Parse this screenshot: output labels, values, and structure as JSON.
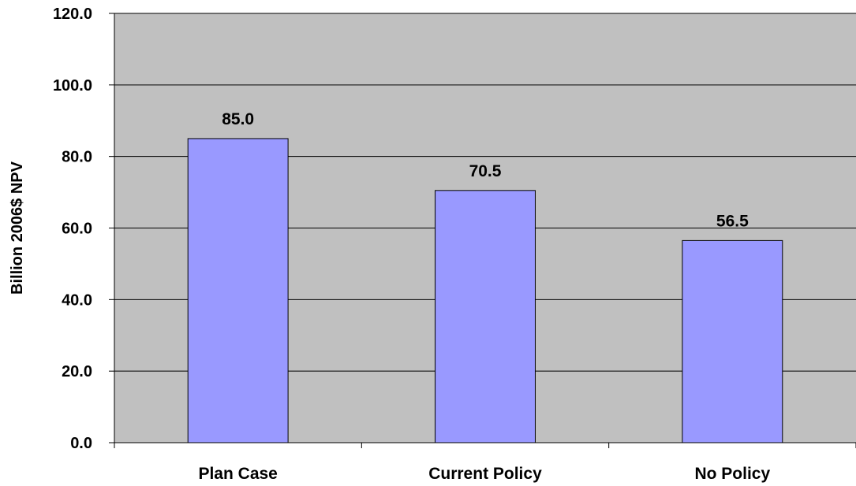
{
  "chart_data": {
    "type": "bar",
    "categories": [
      "Plan Case",
      "Current Policy",
      "No Policy"
    ],
    "values": [
      85.0,
      70.5,
      56.5
    ],
    "data_labels": [
      "85.0",
      "70.5",
      "56.5"
    ],
    "title": "",
    "xlabel": "",
    "ylabel": "Billion 2006$ NPV",
    "ylim": [
      0,
      120
    ],
    "yticks": [
      0,
      20,
      40,
      60,
      80,
      100,
      120
    ],
    "ytick_labels": [
      "0.0",
      "20.0",
      "40.0",
      "60.0",
      "80.0",
      "100.0",
      "120.0"
    ],
    "grid": true,
    "legend": "none",
    "colors": {
      "plot_background": "#C0C0C0",
      "bar_fill": "#9999FF",
      "bar_stroke": "#000000",
      "gridline": "#000000"
    }
  }
}
